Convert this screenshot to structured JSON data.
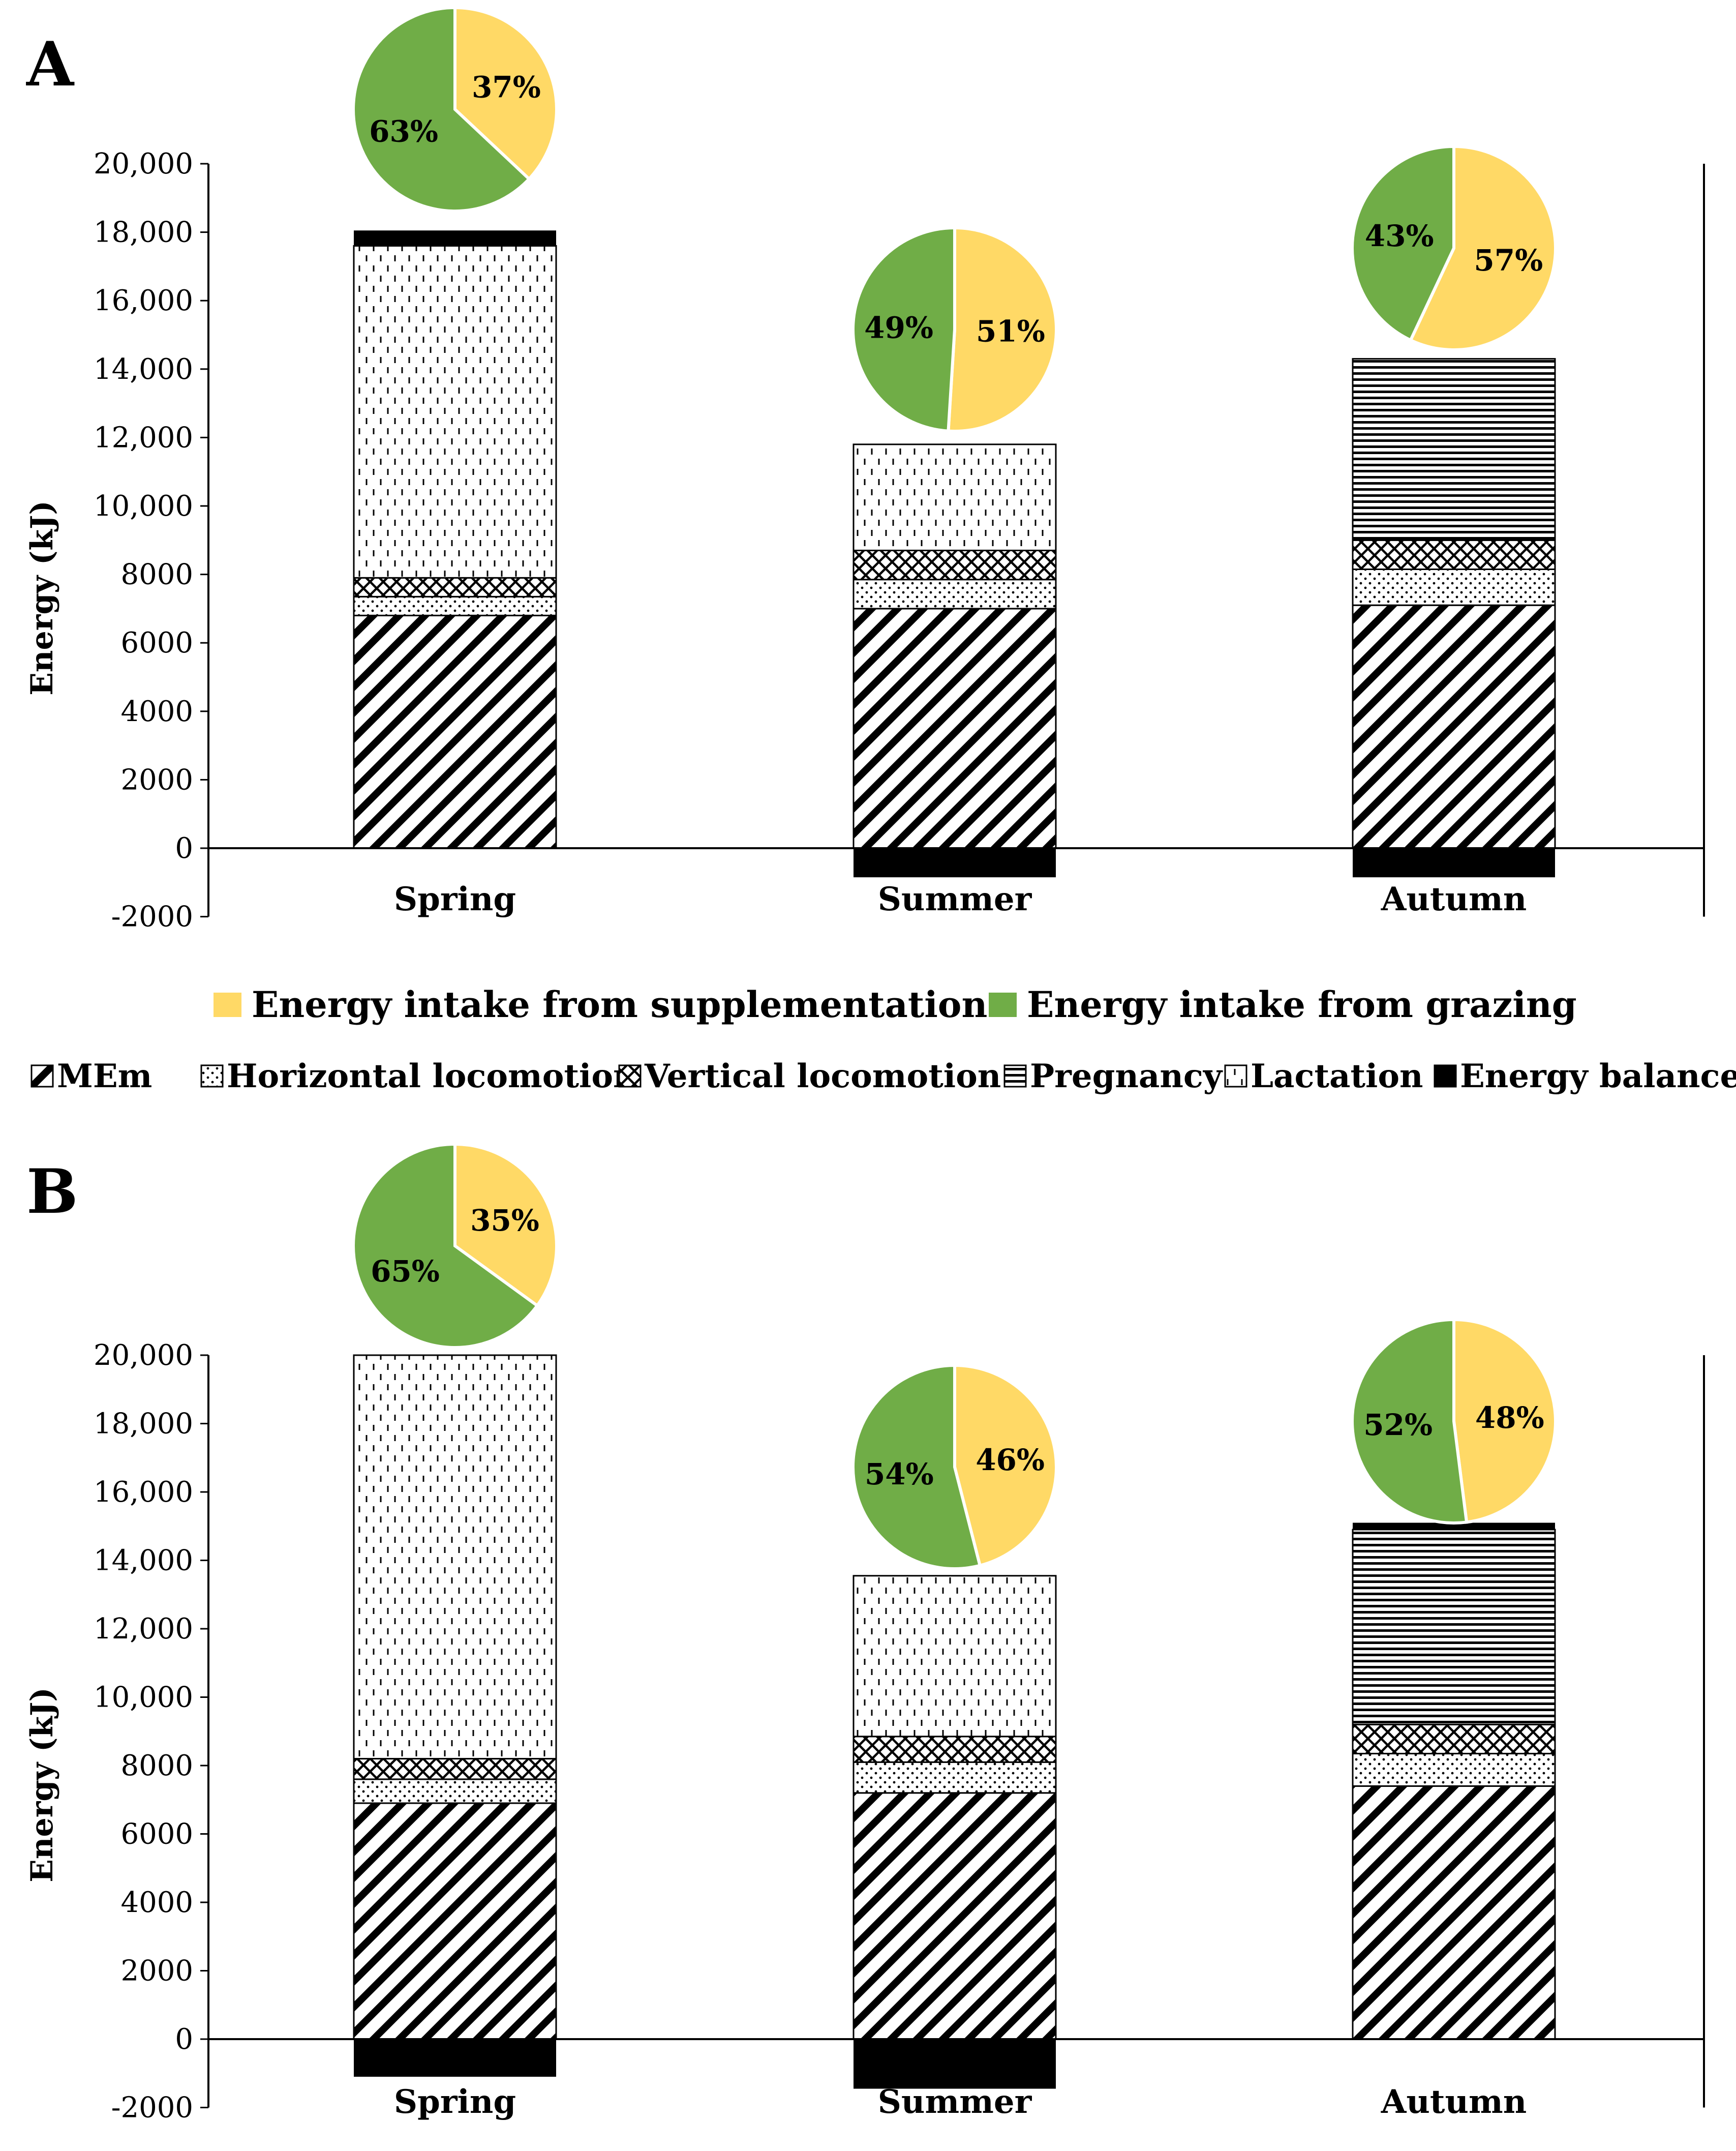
{
  "colors": {
    "supplementation": "#FFD966",
    "grazing": "#70AD47",
    "energy_balance": "#000000"
  },
  "legend": {
    "intake": [
      {
        "key": "supplementation",
        "label": "Energy intake from supplementation"
      },
      {
        "key": "grazing",
        "label": "Energy intake from grazing"
      }
    ],
    "components": [
      {
        "key": "mem",
        "label": "MEm"
      },
      {
        "key": "horizontal",
        "label": "Horizontal locomotion"
      },
      {
        "key": "vertical",
        "label": "Vertical locomotion"
      },
      {
        "key": "pregnancy",
        "label": "Pregnancy"
      },
      {
        "key": "lactation",
        "label": "Lactation"
      },
      {
        "key": "balance",
        "label": "Energy balance"
      }
    ]
  },
  "chart_data": [
    {
      "panel": "A",
      "type": "bar",
      "stacked": true,
      "ylabel": "Energy (kJ)",
      "ylim": [
        -2000,
        20000
      ],
      "yticks": [
        "-2000",
        "0",
        "2000",
        "4000",
        "6000",
        "8000",
        "10,000",
        "12,000",
        "14,000",
        "16,000",
        "18,000",
        "20,000"
      ],
      "categories": [
        "Spring",
        "Summer",
        "Autumn"
      ],
      "series": [
        {
          "name": "MEm",
          "key": "mem",
          "values": [
            6800,
            7000,
            7100
          ]
        },
        {
          "name": "Horizontal locomotion",
          "key": "horizontal",
          "values": [
            550,
            850,
            1050
          ]
        },
        {
          "name": "Vertical locomotion",
          "key": "vertical",
          "values": [
            550,
            850,
            850
          ]
        },
        {
          "name": "Pregnancy",
          "key": "pregnancy",
          "values": [
            0,
            0,
            5300
          ]
        },
        {
          "name": "Lactation",
          "key": "lactation",
          "values": [
            9700,
            3100,
            0
          ]
        },
        {
          "name": "Energy balance",
          "key": "balance",
          "values": [
            450,
            -850,
            -850
          ]
        }
      ],
      "pies": [
        {
          "category": "Spring",
          "supplementation": 37,
          "grazing": 63,
          "supplementation_label": "37%",
          "grazing_label": "63%"
        },
        {
          "category": "Summer",
          "supplementation": 51,
          "grazing": 49,
          "supplementation_label": "51%",
          "grazing_label": "49%"
        },
        {
          "category": "Autumn",
          "supplementation": 57,
          "grazing": 43,
          "supplementation_label": "57%",
          "grazing_label": "43%"
        }
      ]
    },
    {
      "panel": "B",
      "type": "bar",
      "stacked": true,
      "ylabel": "Energy (kJ)",
      "ylim": [
        -2000,
        20000
      ],
      "yticks": [
        "-2000",
        "0",
        "2000",
        "4000",
        "6000",
        "8000",
        "10,000",
        "12,000",
        "14,000",
        "16,000",
        "18,000",
        "20,000"
      ],
      "categories": [
        "Spring",
        "Summer",
        "Autumn"
      ],
      "series": [
        {
          "name": "MEm",
          "key": "mem",
          "values": [
            6900,
            7200,
            7400
          ]
        },
        {
          "name": "Horizontal locomotion",
          "key": "horizontal",
          "values": [
            700,
            900,
            950
          ]
        },
        {
          "name": "Vertical locomotion",
          "key": "vertical",
          "values": [
            600,
            750,
            850
          ]
        },
        {
          "name": "Pregnancy",
          "key": "pregnancy",
          "values": [
            0,
            0,
            5700
          ]
        },
        {
          "name": "Lactation",
          "key": "lactation",
          "values": [
            11800,
            4700,
            0
          ]
        },
        {
          "name": "Energy balance",
          "key": "balance",
          "values": [
            -1100,
            -1450,
            200
          ]
        }
      ],
      "pies": [
        {
          "category": "Spring",
          "supplementation": 35,
          "grazing": 65,
          "supplementation_label": "35%",
          "grazing_label": "65%"
        },
        {
          "category": "Summer",
          "supplementation": 46,
          "grazing": 54,
          "supplementation_label": "46%",
          "grazing_label": "54%"
        },
        {
          "category": "Autumn",
          "supplementation": 48,
          "grazing": 52,
          "supplementation_label": "48%",
          "grazing_label": "52%"
        }
      ]
    }
  ]
}
